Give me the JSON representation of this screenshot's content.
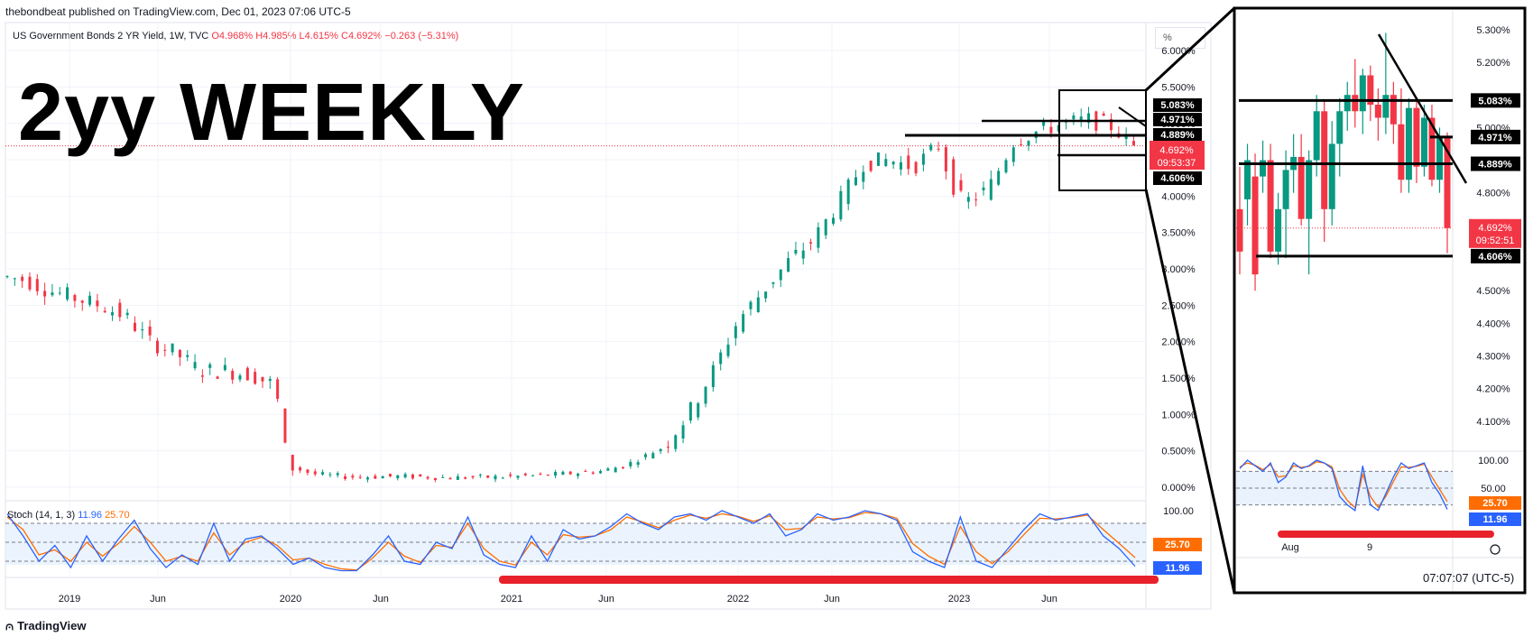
{
  "header": {
    "publisher": "thebondbeat published on TradingView.com, Dec 01, 2023 07:06 UTC-5",
    "symbol": "US Government Bonds 2 YR Yield, 1W, TVC",
    "ohlc": "O4.968% H4.985% L4.615% C4.692% −0.263 (−5.31%)"
  },
  "overlay_title": "2yy WEEKLY",
  "scale_button": "%",
  "stoch": {
    "label": "Stoch (14, 1, 3)",
    "k": "11.96",
    "d": "25.70"
  },
  "footer": {
    "logo": "TradingView"
  },
  "inset_time": "07:07:07 (UTC-5)",
  "colors": {
    "up": "#089981",
    "down": "#f23645",
    "k_line": "#2962ff",
    "d_line": "#ff6d00",
    "band": "#e3effd"
  },
  "chart_data": [
    {
      "type": "candlestick",
      "title": "US Government Bonds 2 YR Yield, 1W, TVC",
      "x_ticks": [
        "2019",
        "Jun",
        "2020",
        "Jun",
        "2021",
        "Jun",
        "2022",
        "Jun",
        "2023",
        "Jun"
      ],
      "y_ticks": [
        "0.000%",
        "0.500%",
        "1.000%",
        "1.500%",
        "2.000%",
        "2.500%",
        "3.000%",
        "3.500%",
        "4.000%",
        "4.500%",
        "5.000%",
        "5.500%",
        "6.000%"
      ],
      "ylim": [
        -0.1,
        6.2
      ],
      "trend_points": [
        [
          0,
          2.9
        ],
        [
          10,
          2.85
        ],
        [
          20,
          2.7
        ],
        [
          30,
          2.6
        ],
        [
          40,
          2.5
        ],
        [
          50,
          2.35
        ],
        [
          60,
          2.0
        ],
        [
          70,
          1.85
        ],
        [
          80,
          1.6
        ],
        [
          90,
          1.6
        ],
        [
          100,
          1.55
        ],
        [
          110,
          1.4
        ],
        [
          115,
          0.3
        ],
        [
          125,
          0.18
        ],
        [
          140,
          0.14
        ],
        [
          160,
          0.15
        ],
        [
          180,
          0.13
        ],
        [
          200,
          0.14
        ],
        [
          220,
          0.17
        ],
        [
          240,
          0.22
        ],
        [
          250,
          0.3
        ],
        [
          265,
          0.55
        ],
        [
          275,
          1.0
        ],
        [
          285,
          1.6
        ],
        [
          295,
          2.3
        ],
        [
          305,
          2.7
        ],
        [
          315,
          3.1
        ],
        [
          325,
          3.4
        ],
        [
          335,
          3.9
        ],
        [
          345,
          4.45
        ],
        [
          355,
          4.5
        ],
        [
          365,
          4.4
        ],
        [
          375,
          4.7
        ],
        [
          380,
          4.2
        ],
        [
          385,
          3.9
        ],
        [
          395,
          4.1
        ],
        [
          405,
          4.75
        ],
        [
          415,
          4.9
        ],
        [
          425,
          5.0
        ],
        [
          435,
          5.05
        ],
        [
          445,
          4.95
        ],
        [
          452,
          4.692
        ]
      ],
      "levels": [
        {
          "label": "5.083%",
          "value": 5.083
        },
        {
          "label": "4.971%",
          "value": 4.971
        },
        {
          "label": "4.889%",
          "value": 4.889
        },
        {
          "label": "4.606%",
          "value": 4.606
        }
      ],
      "last_price": {
        "label": "4.692%",
        "countdown": "09:53:37",
        "value": 4.692
      }
    },
    {
      "type": "line",
      "title": "Stoch (14, 1, 3)",
      "y_ticks": [
        "100.00",
        "50.00"
      ],
      "ylim": [
        0,
        100
      ],
      "levels": [
        80,
        50,
        20
      ],
      "series": [
        {
          "name": "%K",
          "values": [
            95,
            60,
            20,
            45,
            10,
            60,
            20,
            55,
            85,
            40,
            10,
            30,
            15,
            80,
            20,
            55,
            60,
            40,
            15,
            25,
            10,
            5,
            5,
            30,
            60,
            20,
            15,
            50,
            40,
            90,
            30,
            15,
            10,
            60,
            20,
            70,
            55,
            60,
            75,
            95,
            80,
            70,
            90,
            95,
            85,
            100,
            90,
            80,
            95,
            60,
            70,
            95,
            85,
            90,
            100,
            95,
            85,
            35,
            20,
            10,
            90,
            20,
            10,
            40,
            70,
            95,
            85,
            90,
            95,
            60,
            40,
            11.96
          ]
        },
        {
          "name": "%D",
          "values": [
            90,
            70,
            30,
            38,
            20,
            50,
            28,
            48,
            75,
            50,
            20,
            28,
            20,
            65,
            30,
            50,
            58,
            45,
            22,
            25,
            15,
            8,
            6,
            25,
            50,
            28,
            18,
            45,
            42,
            80,
            40,
            20,
            14,
            50,
            30,
            62,
            58,
            60,
            70,
            90,
            82,
            73,
            85,
            93,
            88,
            95,
            91,
            83,
            92,
            70,
            72,
            90,
            87,
            89,
            97,
            95,
            88,
            48,
            28,
            15,
            75,
            35,
            16,
            35,
            62,
            88,
            87,
            89,
            93,
            70,
            48,
            25.7
          ]
        }
      ],
      "last_values": {
        "k": "11.96",
        "d": "25.70"
      }
    },
    {
      "type": "candlestick",
      "title": "inset",
      "x_ticks": [
        "Aug",
        "9"
      ],
      "y_ticks": [
        "4.100%",
        "4.200%",
        "4.300%",
        "4.400%",
        "4.500%",
        "4.800%",
        "5.000%",
        "5.200%",
        "5.300%"
      ],
      "ylim": [
        4.05,
        5.33
      ],
      "candles": [
        [
          4.75,
          4.88,
          4.55,
          4.62
        ],
        [
          4.78,
          4.95,
          4.7,
          4.9
        ],
        [
          4.85,
          4.92,
          4.5,
          4.55
        ],
        [
          4.85,
          4.96,
          4.8,
          4.9
        ],
        [
          4.9,
          4.95,
          4.6,
          4.62
        ],
        [
          4.62,
          4.8,
          4.58,
          4.75
        ],
        [
          4.75,
          4.93,
          4.6,
          4.87
        ],
        [
          4.87,
          4.98,
          4.8,
          4.91
        ],
        [
          4.91,
          4.98,
          4.7,
          4.72
        ],
        [
          4.72,
          4.93,
          4.55,
          4.9
        ],
        [
          4.9,
          5.1,
          4.85,
          5.05
        ],
        [
          5.05,
          5.08,
          4.65,
          4.75
        ],
        [
          4.75,
          5.02,
          4.7,
          4.95
        ],
        [
          4.95,
          5.09,
          4.85,
          5.05
        ],
        [
          5.05,
          5.14,
          4.99,
          5.1
        ],
        [
          5.1,
          5.21,
          5.0,
          5.05
        ],
        [
          5.05,
          5.18,
          4.98,
          5.16
        ],
        [
          5.16,
          5.19,
          5.02,
          5.07
        ],
        [
          5.07,
          5.12,
          4.96,
          5.03
        ],
        [
          5.03,
          5.29,
          4.98,
          5.1
        ],
        [
          5.1,
          5.14,
          4.95,
          5.01
        ],
        [
          5.01,
          5.12,
          4.8,
          4.84
        ],
        [
          4.84,
          5.09,
          4.8,
          5.06
        ],
        [
          5.06,
          5.08,
          4.83,
          4.88
        ],
        [
          4.88,
          5.07,
          4.85,
          5.03
        ],
        [
          5.03,
          5.07,
          4.82,
          4.84
        ],
        [
          4.84,
          5.0,
          4.8,
          4.97
        ],
        [
          4.968,
          4.985,
          4.615,
          4.692
        ]
      ],
      "levels": [
        {
          "label": "5.083%",
          "value": 5.083
        },
        {
          "label": "4.971%",
          "value": 4.971
        },
        {
          "label": "4.889%",
          "value": 4.889
        },
        {
          "label": "4.606%",
          "value": 4.606
        }
      ],
      "last_price": {
        "label": "4.692%",
        "countdown": "09:52:51",
        "value": 4.692
      },
      "stoch_ticks": [
        "100.00",
        "50.00"
      ],
      "stoch_last": {
        "k": "11.96",
        "d": "25.70"
      }
    }
  ]
}
